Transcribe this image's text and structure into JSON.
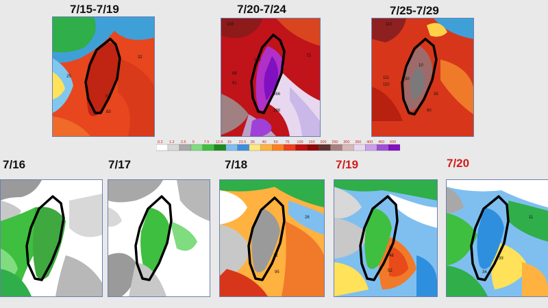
{
  "top_periods": [
    {
      "label": "7/15-7/19",
      "values": [
        "32",
        "25",
        "78",
        "83"
      ]
    },
    {
      "label": "7/20-7/24",
      "values": [
        "103",
        "119",
        "89",
        "91",
        "73",
        "266",
        "298"
      ]
    },
    {
      "label": "7/25-7/29",
      "values": [
        "110",
        "10",
        "111",
        "110",
        "30",
        "35",
        "90"
      ]
    }
  ],
  "daily": [
    {
      "label": "7/16",
      "highlight": false,
      "values": []
    },
    {
      "label": "7/17",
      "highlight": false,
      "values": []
    },
    {
      "label": "7/18",
      "highlight": false,
      "values": [
        "26",
        "32",
        "95"
      ]
    },
    {
      "label": "7/19",
      "highlight": true,
      "values": [
        "48",
        "52"
      ]
    },
    {
      "label": "7/20",
      "highlight": true,
      "values": [
        "11",
        "39",
        "34"
      ]
    }
  ],
  "color_scale": {
    "ticks": [
      "0.2",
      "1.2",
      "2.5",
      "5",
      "7.5",
      "12.5",
      "15",
      "22.5",
      "30",
      "40",
      "50",
      "75",
      "100",
      "150",
      "200",
      "250",
      "300",
      "350",
      "400",
      "450",
      "500"
    ],
    "colors": [
      "#ffffff",
      "#d8d8d8",
      "#a8a8a8",
      "#7fdc7f",
      "#3fbf3f",
      "#1e8a1e",
      "#7fbfef",
      "#3f8fdf",
      "#ffe87f",
      "#ffb23f",
      "#ff7f1f",
      "#ef3f1f",
      "#c01010",
      "#8f0808",
      "#5f3030",
      "#a88080",
      "#d8b8b8",
      "#e8d8f0",
      "#c8a0e8",
      "#a050d8",
      "#8010c0"
    ],
    "label_color": "#d21a1a"
  }
}
